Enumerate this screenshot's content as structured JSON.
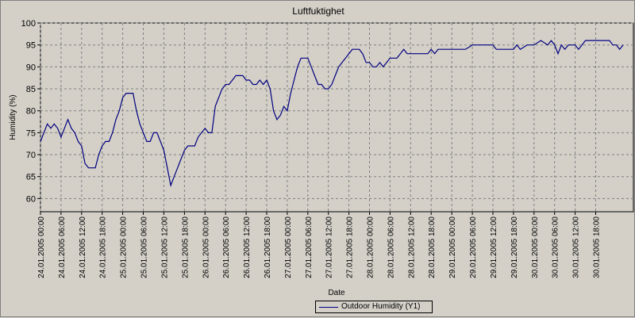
{
  "chart_data": {
    "type": "line",
    "title": "Luftfuktighet",
    "xlabel": "Date",
    "ylabel": "Humidity (%)",
    "ylim": [
      57,
      100
    ],
    "yticks": [
      60,
      65,
      70,
      75,
      80,
      85,
      90,
      95,
      100
    ],
    "xticks": [
      "24.01.2005 00:00",
      "24.01.2005 06:00",
      "24.01.2005 12:00",
      "24.01.2005 18:00",
      "25.01.2005 00:00",
      "25.01.2005 06:00",
      "25.01.2005 12:00",
      "25.01.2005 18:00",
      "26.01.2005 00:00",
      "26.01.2005 06:00",
      "26.01.2005 12:00",
      "26.01.2005 18:00",
      "27.01.2005 00:00",
      "27.01.2005 06:00",
      "27.01.2005 12:00",
      "27.01.2005 18:00",
      "28.01.2005 00:00",
      "28.01.2005 06:00",
      "28.01.2005 12:00",
      "28.01.2005 18:00",
      "29.01.2005 00:00",
      "29.01.2005 06:00",
      "29.01.2005 12:00",
      "29.01.2005 18:00",
      "30.01.2005 00:00",
      "30.01.2005 06:00",
      "30.01.2005 12:00",
      "30.01.2005 18:00"
    ],
    "xlim": [
      "24.01.2005 00:00",
      "31.01.2005 05:00"
    ],
    "grid": true,
    "legend": "bottom-center",
    "series": [
      {
        "name": "Outdoor Humidity (Y1)",
        "color": "#000080",
        "points": [
          [
            "24.01.2005 00:00",
            73
          ],
          [
            "24.01.2005 01:00",
            75
          ],
          [
            "24.01.2005 02:00",
            77
          ],
          [
            "24.01.2005 03:00",
            76
          ],
          [
            "24.01.2005 04:00",
            77
          ],
          [
            "24.01.2005 05:00",
            76
          ],
          [
            "24.01.2005 06:00",
            74
          ],
          [
            "24.01.2005 07:00",
            76
          ],
          [
            "24.01.2005 08:00",
            78
          ],
          [
            "24.01.2005 09:00",
            76
          ],
          [
            "24.01.2005 10:00",
            75
          ],
          [
            "24.01.2005 11:00",
            73
          ],
          [
            "24.01.2005 12:00",
            72
          ],
          [
            "24.01.2005 13:00",
            68
          ],
          [
            "24.01.2005 14:00",
            67
          ],
          [
            "24.01.2005 16:00",
            67
          ],
          [
            "24.01.2005 17:00",
            70
          ],
          [
            "24.01.2005 18:00",
            72
          ],
          [
            "24.01.2005 19:00",
            73
          ],
          [
            "24.01.2005 20:00",
            73
          ],
          [
            "24.01.2005 21:00",
            75
          ],
          [
            "24.01.2005 22:00",
            78
          ],
          [
            "24.01.2005 23:00",
            80
          ],
          [
            "25.01.2005 00:00",
            83
          ],
          [
            "25.01.2005 01:00",
            84
          ],
          [
            "25.01.2005 03:00",
            84
          ],
          [
            "25.01.2005 04:00",
            80
          ],
          [
            "25.01.2005 05:00",
            77
          ],
          [
            "25.01.2005 06:00",
            75
          ],
          [
            "25.01.2005 07:00",
            73
          ],
          [
            "25.01.2005 08:00",
            73
          ],
          [
            "25.01.2005 09:00",
            75
          ],
          [
            "25.01.2005 10:00",
            75
          ],
          [
            "25.01.2005 11:00",
            73
          ],
          [
            "25.01.2005 12:00",
            71
          ],
          [
            "25.01.2005 13:00",
            67
          ],
          [
            "25.01.2005 14:00",
            63
          ],
          [
            "25.01.2005 15:00",
            65
          ],
          [
            "25.01.2005 16:00",
            67
          ],
          [
            "25.01.2005 17:00",
            69
          ],
          [
            "25.01.2005 18:00",
            71
          ],
          [
            "25.01.2005 19:00",
            72
          ],
          [
            "25.01.2005 21:00",
            72
          ],
          [
            "25.01.2005 22:00",
            74
          ],
          [
            "25.01.2005 23:00",
            75
          ],
          [
            "26.01.2005 00:00",
            76
          ],
          [
            "26.01.2005 01:00",
            75
          ],
          [
            "26.01.2005 02:00",
            75
          ],
          [
            "26.01.2005 03:00",
            81
          ],
          [
            "26.01.2005 04:00",
            83
          ],
          [
            "26.01.2005 05:00",
            85
          ],
          [
            "26.01.2005 06:00",
            86
          ],
          [
            "26.01.2005 07:00",
            86
          ],
          [
            "26.01.2005 08:00",
            87
          ],
          [
            "26.01.2005 09:00",
            88
          ],
          [
            "26.01.2005 11:00",
            88
          ],
          [
            "26.01.2005 12:00",
            87
          ],
          [
            "26.01.2005 13:00",
            87
          ],
          [
            "26.01.2005 14:00",
            86
          ],
          [
            "26.01.2005 15:00",
            86
          ],
          [
            "26.01.2005 16:00",
            87
          ],
          [
            "26.01.2005 17:00",
            86
          ],
          [
            "26.01.2005 18:00",
            87
          ],
          [
            "26.01.2005 19:00",
            85
          ],
          [
            "26.01.2005 20:00",
            80
          ],
          [
            "26.01.2005 21:00",
            78
          ],
          [
            "26.01.2005 22:00",
            79
          ],
          [
            "26.01.2005 23:00",
            81
          ],
          [
            "27.01.2005 00:00",
            80
          ],
          [
            "27.01.2005 01:00",
            84
          ],
          [
            "27.01.2005 02:00",
            87
          ],
          [
            "27.01.2005 03:00",
            90
          ],
          [
            "27.01.2005 04:00",
            92
          ],
          [
            "27.01.2005 06:00",
            92
          ],
          [
            "27.01.2005 07:00",
            90
          ],
          [
            "27.01.2005 08:00",
            88
          ],
          [
            "27.01.2005 09:00",
            86
          ],
          [
            "27.01.2005 10:00",
            86
          ],
          [
            "27.01.2005 11:00",
            85
          ],
          [
            "27.01.2005 12:00",
            85
          ],
          [
            "27.01.2005 13:00",
            86
          ],
          [
            "27.01.2005 14:00",
            88
          ],
          [
            "27.01.2005 15:00",
            90
          ],
          [
            "27.01.2005 16:00",
            91
          ],
          [
            "27.01.2005 17:00",
            92
          ],
          [
            "27.01.2005 18:00",
            93
          ],
          [
            "27.01.2005 19:00",
            94
          ],
          [
            "27.01.2005 21:00",
            94
          ],
          [
            "27.01.2005 22:00",
            93
          ],
          [
            "27.01.2005 23:00",
            91
          ],
          [
            "28.01.2005 00:00",
            91
          ],
          [
            "28.01.2005 01:00",
            90
          ],
          [
            "28.01.2005 02:00",
            90
          ],
          [
            "28.01.2005 03:00",
            91
          ],
          [
            "28.01.2005 04:00",
            90
          ],
          [
            "28.01.2005 05:00",
            91
          ],
          [
            "28.01.2005 06:00",
            92
          ],
          [
            "28.01.2005 08:00",
            92
          ],
          [
            "28.01.2005 09:00",
            93
          ],
          [
            "28.01.2005 10:00",
            94
          ],
          [
            "28.01.2005 11:00",
            93
          ],
          [
            "28.01.2005 15:00",
            93
          ],
          [
            "28.01.2005 17:00",
            93
          ],
          [
            "28.01.2005 18:00",
            94
          ],
          [
            "28.01.2005 19:00",
            93
          ],
          [
            "28.01.2005 20:00",
            94
          ],
          [
            "29.01.2005 00:00",
            94
          ],
          [
            "29.01.2005 04:00",
            94
          ],
          [
            "29.01.2005 06:00",
            95
          ],
          [
            "29.01.2005 12:00",
            95
          ],
          [
            "29.01.2005 13:00",
            94
          ],
          [
            "29.01.2005 18:00",
            94
          ],
          [
            "29.01.2005 19:00",
            95
          ],
          [
            "29.01.2005 20:00",
            94
          ],
          [
            "29.01.2005 22:00",
            95
          ],
          [
            "30.01.2005 00:00",
            95
          ],
          [
            "30.01.2005 02:00",
            96
          ],
          [
            "30.01.2005 04:00",
            95
          ],
          [
            "30.01.2005 05:00",
            96
          ],
          [
            "30.01.2005 06:00",
            95
          ],
          [
            "30.01.2005 07:00",
            93
          ],
          [
            "30.01.2005 08:00",
            95
          ],
          [
            "30.01.2005 09:00",
            94
          ],
          [
            "30.01.2005 10:00",
            95
          ],
          [
            "30.01.2005 12:00",
            95
          ],
          [
            "30.01.2005 13:00",
            94
          ],
          [
            "30.01.2005 14:00",
            95
          ],
          [
            "30.01.2005 15:00",
            96
          ],
          [
            "30.01.2005 18:00",
            96
          ],
          [
            "30.01.2005 22:00",
            96
          ],
          [
            "30.01.2005 23:00",
            95
          ],
          [
            "31.01.2005 00:00",
            95
          ],
          [
            "31.01.2005 01:00",
            94
          ],
          [
            "31.01.2005 02:00",
            95
          ]
        ]
      }
    ]
  }
}
